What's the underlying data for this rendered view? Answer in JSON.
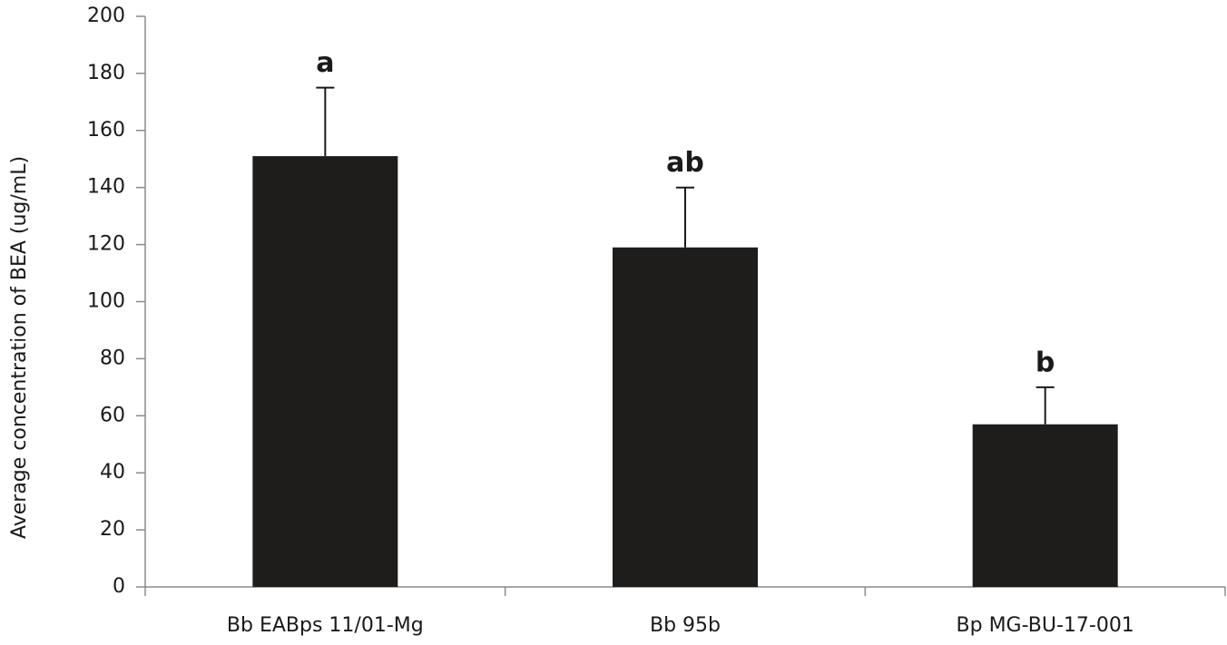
{
  "chart_data": {
    "type": "bar",
    "ylabel": "Average concentration of BEA  (ug/mL)",
    "categories": [
      "Bb EABps 11/01-Mg",
      "Bb 95b",
      "Bp MG-BU-17-001"
    ],
    "values": [
      151,
      119,
      57
    ],
    "errors": [
      24,
      21,
      13
    ],
    "annotations": [
      "a",
      "ab",
      "b"
    ],
    "color": "#1f1c1c",
    "ylim": [
      0,
      200
    ],
    "yticks": [
      0,
      20,
      40,
      60,
      80,
      100,
      120,
      140,
      160,
      180,
      200
    ]
  }
}
